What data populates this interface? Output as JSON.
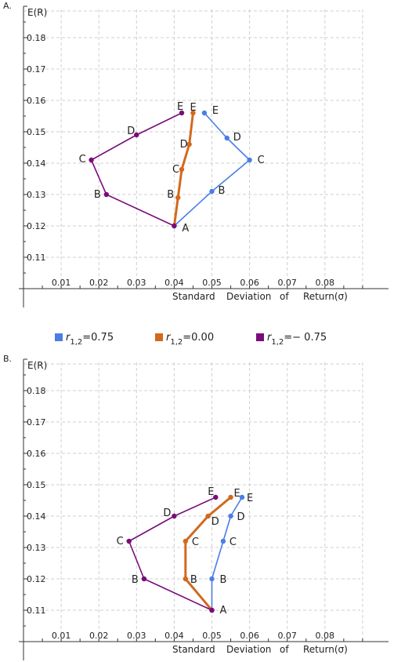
{
  "legend": [
    {
      "sym": "r",
      "sub": "1,2",
      "val": "=0.75",
      "color": "#4a7ee6"
    },
    {
      "sym": "r",
      "sub": "1,2",
      "val": "=0.00",
      "color": "#d2691e"
    },
    {
      "sym": "r",
      "sub": "1,2",
      "val": "=− 0.75",
      "color": "#7a0c7a"
    }
  ],
  "chart_data": [
    {
      "type": "line",
      "panel_label": "A.",
      "ylabel": "E(R)",
      "xlabel": [
        "Standard",
        "Deviation",
        "of",
        "Return(σ)"
      ],
      "xticks": [
        "0.01",
        "0.02",
        "0.03",
        "0.04",
        "0.05",
        "0.06",
        "0.07",
        "0.08"
      ],
      "yticks": [
        "0.11",
        "0.12",
        "0.13",
        "0.14",
        "0.15",
        "0.16",
        "0.17",
        "0.18"
      ],
      "xlim": [
        0,
        0.09
      ],
      "ylim": [
        0.1,
        0.19
      ],
      "grid": true,
      "series": [
        {
          "color": "#4a7ee6",
          "labels": [
            "A",
            "B",
            "C",
            "D",
            "E"
          ],
          "x": [
            0.04,
            0.05,
            0.06,
            0.054,
            0.048
          ],
          "y": [
            0.12,
            0.131,
            0.141,
            0.148,
            0.156
          ]
        },
        {
          "color": "#d2691e",
          "labels": [
            "A",
            "B",
            "C",
            "D",
            "E"
          ],
          "x": [
            0.04,
            0.041,
            0.042,
            0.044,
            0.045
          ],
          "y": [
            0.12,
            0.129,
            0.138,
            0.146,
            0.156
          ]
        },
        {
          "color": "#7a0c7a",
          "labels": [
            "A",
            "B",
            "C",
            "D",
            "E"
          ],
          "x": [
            0.04,
            0.022,
            0.018,
            0.03,
            0.042
          ],
          "y": [
            0.12,
            0.13,
            0.141,
            0.149,
            0.156
          ]
        }
      ]
    },
    {
      "type": "line",
      "panel_label": "B.",
      "ylabel": "E(R)",
      "xlabel": [
        "Standard",
        "Deviation",
        "of",
        "Return(σ)"
      ],
      "xticks": [
        "0.01",
        "0.02",
        "0.03",
        "0.04",
        "0.05",
        "0.06",
        "0.07",
        "0.08"
      ],
      "yticks": [
        "0.11",
        "0.12",
        "0.13",
        "0.14",
        "0.15",
        "0.16",
        "0.17",
        "0.18"
      ],
      "xlim": [
        0,
        0.09
      ],
      "ylim": [
        0.1,
        0.19
      ],
      "grid": true,
      "series": [
        {
          "color": "#4a7ee6",
          "labels": [
            "A",
            "B",
            "C",
            "D",
            "E"
          ],
          "x": [
            0.05,
            0.05,
            0.053,
            0.055,
            0.058
          ],
          "y": [
            0.11,
            0.12,
            0.132,
            0.14,
            0.146
          ]
        },
        {
          "color": "#d2691e",
          "labels": [
            "A",
            "B",
            "C",
            "D",
            "E"
          ],
          "x": [
            0.05,
            0.043,
            0.043,
            0.049,
            0.055
          ],
          "y": [
            0.11,
            0.12,
            0.132,
            0.14,
            0.146
          ]
        },
        {
          "color": "#7a0c7a",
          "labels": [
            "A",
            "B",
            "C",
            "D",
            "E"
          ],
          "x": [
            0.05,
            0.032,
            0.028,
            0.04,
            0.051
          ],
          "y": [
            0.11,
            0.12,
            0.132,
            0.14,
            0.146
          ]
        }
      ]
    }
  ]
}
